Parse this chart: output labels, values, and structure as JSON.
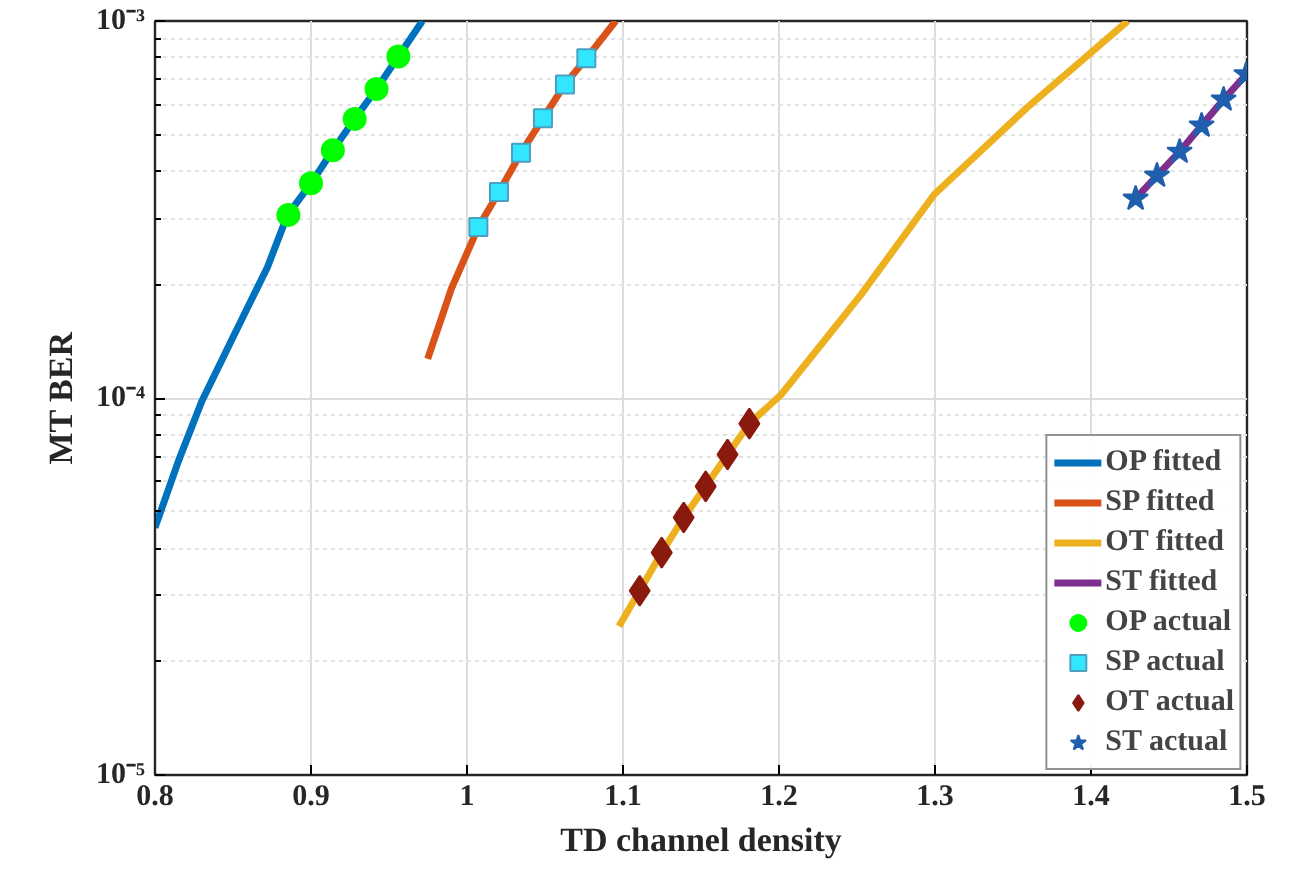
{
  "chart_data": {
    "type": "line",
    "xlabel": "TD channel density",
    "ylabel": "MT BER",
    "log": "y",
    "grid": true,
    "legend": "bottom right",
    "xlim": [
      0.8,
      1.5
    ],
    "xticks": [
      0.8,
      0.9,
      1,
      1.1,
      1.2,
      1.3,
      1.4,
      1.5
    ],
    "ylim": [
      1e-05,
      0.001
    ],
    "yticks": [
      {
        "value": 1e-05,
        "label": "10⁻⁵"
      },
      {
        "value": 0.0001,
        "label": "10⁻⁴"
      },
      {
        "value": 0.001,
        "label": "10⁻³"
      }
    ],
    "series": [
      {
        "name": "OP fitted",
        "color": "#0072bd",
        "x": [
          0.8,
          0.815,
          0.83,
          0.85,
          0.872,
          0.885,
          0.9,
          0.914,
          0.928,
          0.942,
          0.956,
          0.9714
        ],
        "values": [
          4.53e-05,
          6.8e-05,
          9.8e-05,
          0.000145,
          0.000222,
          0.000306,
          0.000371,
          0.000454,
          0.00055,
          0.00066,
          0.000805,
          0.001
        ]
      },
      {
        "name": "SP fitted",
        "color": "#d95319",
        "x": [
          0.9748,
          0.99,
          1.0073,
          1.0205,
          1.0346,
          1.0487,
          1.0628,
          1.0765,
          1.0953
        ],
        "values": [
          0.000127,
          0.000195,
          0.000284,
          0.000352,
          0.000447,
          0.000552,
          0.000679,
          0.000796,
          0.001
        ]
      },
      {
        "name": "OT fitted",
        "color": "#edb120",
        "x": [
          1.0974,
          1.1107,
          1.1248,
          1.1389,
          1.153,
          1.167,
          1.181,
          1.2013,
          1.2526,
          1.2996,
          1.359,
          1.4235
        ],
        "values": [
          2.48e-05,
          3.08e-05,
          3.89e-05,
          4.82e-05,
          5.83e-05,
          7.08e-05,
          8.55e-05,
          0.000102,
          0.000188,
          0.000347,
          0.000589,
          0.001
        ]
      },
      {
        "name": "ST fitted",
        "color": "#7e2f8e",
        "x": [
          1.4286,
          1.4423,
          1.4568,
          1.4709,
          1.485,
          1.4996
        ],
        "values": [
          0.000338,
          0.000389,
          0.00045,
          0.000528,
          0.000619,
          0.000722
        ]
      },
      {
        "name": "OP actual",
        "type": "scatter",
        "marker": "circle",
        "color": "#00ff00",
        "x": [
          0.8855,
          0.9,
          0.914,
          0.928,
          0.942,
          0.956
        ],
        "values": [
          0.000306,
          0.000371,
          0.000454,
          0.00055,
          0.00066,
          0.000805
        ]
      },
      {
        "name": "SP actual",
        "type": "scatter",
        "marker": "square",
        "color": "#33e6ff",
        "x": [
          1.0073,
          1.0205,
          1.0346,
          1.0487,
          1.0628,
          1.0765
        ],
        "values": [
          0.000284,
          0.000352,
          0.000447,
          0.000552,
          0.000679,
          0.000796
        ]
      },
      {
        "name": "OT actual",
        "type": "scatter",
        "marker": "diamond",
        "color": "#8b1a0e",
        "x": [
          1.1107,
          1.1248,
          1.1389,
          1.153,
          1.167,
          1.181
        ],
        "values": [
          3.08e-05,
          3.89e-05,
          4.82e-05,
          5.83e-05,
          7.08e-05,
          8.55e-05
        ]
      },
      {
        "name": "ST actual",
        "type": "scatter",
        "marker": "star",
        "color": "#1f5fae",
        "x": [
          1.4286,
          1.4423,
          1.4568,
          1.4709,
          1.485,
          1.4996
        ],
        "values": [
          0.000338,
          0.000389,
          0.00045,
          0.000528,
          0.000619,
          0.000722
        ]
      }
    ]
  }
}
